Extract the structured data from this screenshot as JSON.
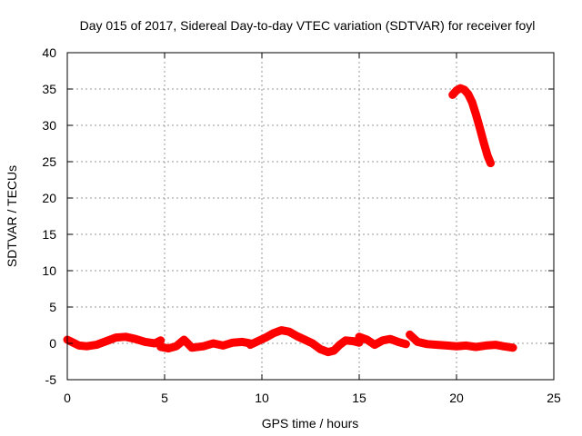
{
  "chart_data": {
    "type": "scatter",
    "title": "Day 015 of 2017, Sidereal Day-to-day VTEC variation (SDTVAR) for receiver foyl",
    "xlabel": "GPS time / hours",
    "ylabel": "SDTVAR / TECUs",
    "xlim": [
      0,
      25
    ],
    "ylim": [
      -5,
      40
    ],
    "x_ticks": [
      0,
      5,
      10,
      15,
      20,
      25
    ],
    "y_ticks": [
      -5,
      0,
      5,
      10,
      15,
      20,
      25,
      30,
      35,
      40
    ],
    "x_tick_labels": [
      "0",
      "5",
      "10",
      "15",
      "20",
      "25"
    ],
    "y_tick_labels": [
      "-5",
      "0",
      "5",
      "10",
      "15",
      "20",
      "25",
      "30",
      "35",
      "40"
    ],
    "grid": true,
    "series": [
      {
        "name": "SDTVAR",
        "color": "#ff0000",
        "marker": "plus",
        "segments": [
          {
            "x": [
              0.0,
              0.3,
              0.6,
              1.0,
              1.5,
              2.0,
              2.5,
              3.0,
              3.5,
              4.0,
              4.5,
              4.8
            ],
            "y": [
              0.5,
              0.1,
              -0.3,
              -0.4,
              -0.2,
              0.3,
              0.8,
              0.9,
              0.6,
              0.2,
              0.0,
              0.4
            ]
          },
          {
            "x": [
              4.8,
              5.2,
              5.6,
              6.0,
              6.4,
              7.0,
              7.5,
              8.0,
              8.5,
              9.0,
              9.4
            ],
            "y": [
              -0.5,
              -0.7,
              -0.4,
              0.5,
              -0.6,
              -0.4,
              0.0,
              -0.3,
              0.1,
              0.2,
              0.0
            ]
          },
          {
            "x": [
              9.4,
              9.8,
              10.2,
              10.6,
              11.0,
              11.4,
              11.8,
              12.2,
              12.6,
              13.0,
              13.4,
              13.7,
              14.0,
              14.3,
              14.7,
              15.0
            ],
            "y": [
              -0.2,
              0.3,
              0.8,
              1.4,
              1.8,
              1.6,
              1.0,
              0.5,
              0.0,
              -0.8,
              -1.2,
              -1.0,
              -0.2,
              0.4,
              0.3,
              0.1
            ]
          },
          {
            "x": [
              15.0,
              15.4,
              15.8,
              16.2,
              16.6,
              17.0,
              17.4
            ],
            "y": [
              0.9,
              0.5,
              -0.2,
              0.4,
              0.6,
              0.2,
              -0.1
            ]
          },
          {
            "x": [
              17.6,
              18.0,
              18.5,
              19.0,
              19.5,
              20.0,
              20.5,
              21.0,
              21.5,
              22.0,
              22.4,
              22.9
            ],
            "y": [
              1.2,
              0.2,
              -0.1,
              -0.2,
              -0.3,
              -0.4,
              -0.3,
              -0.5,
              -0.3,
              -0.2,
              -0.4,
              -0.6
            ]
          },
          {
            "x": [
              19.8,
              20.0,
              20.2,
              20.4,
              20.6,
              20.8,
              21.0,
              21.2,
              21.4,
              21.6,
              21.75
            ],
            "y": [
              34.2,
              34.8,
              35.1,
              34.9,
              34.3,
              33.2,
              31.5,
              29.6,
              27.6,
              25.8,
              24.8
            ]
          }
        ]
      }
    ]
  }
}
